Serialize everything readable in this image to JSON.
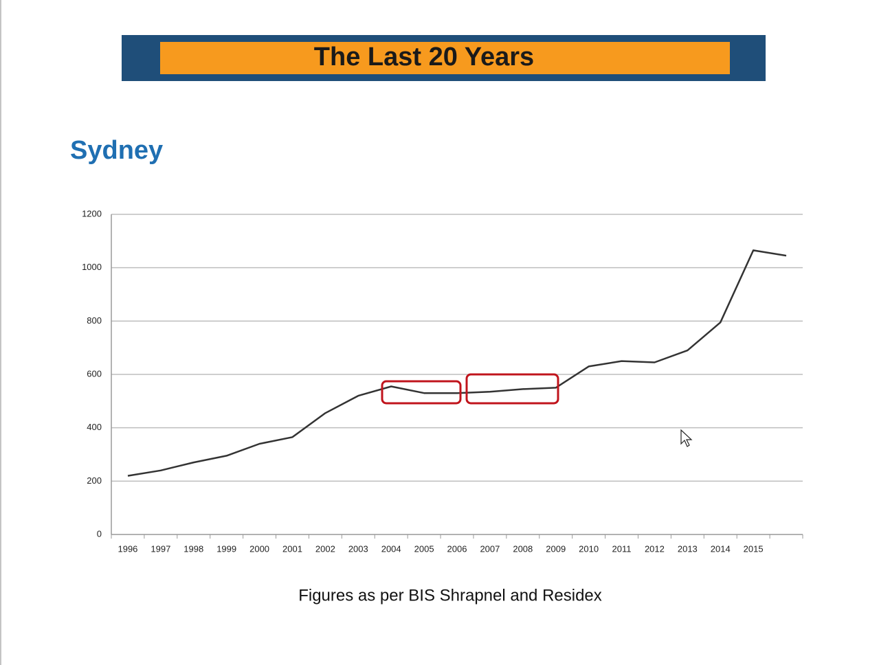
{
  "chart_data": {
    "type": "line",
    "title": "The Last 20 Years",
    "subtitle": "Sydney",
    "source": "Figures as per BIS Shrapnel and Residex",
    "categories": [
      "1996",
      "1997",
      "1998",
      "1999",
      "2000",
      "2001",
      "2002",
      "2003",
      "2004",
      "2005",
      "2006",
      "2007",
      "2008",
      "2009",
      "2010",
      "2011",
      "2012",
      "2013",
      "2014",
      "2015",
      null
    ],
    "series": [
      {
        "color": "#333333",
        "values": [
          220,
          240,
          270,
          295,
          340,
          365,
          455,
          520,
          555,
          530,
          530,
          535,
          545,
          550,
          630,
          650,
          645,
          690,
          795,
          1065,
          1045
        ]
      }
    ],
    "ylim": [
      0,
      1200
    ],
    "yticks": [
      0,
      200,
      400,
      600,
      800,
      1000,
      1200
    ],
    "grid": true
  }
}
